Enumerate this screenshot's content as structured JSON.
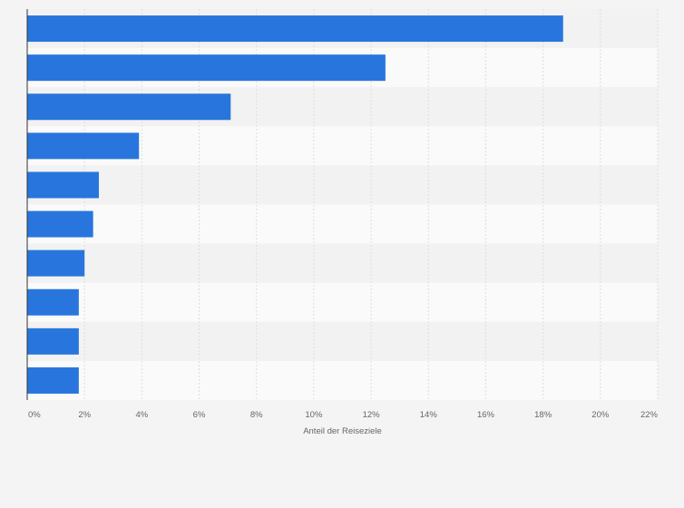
{
  "chart_data": {
    "type": "bar",
    "orientation": "horizontal",
    "categories": [
      "",
      "",
      "",
      "",
      "",
      "",
      "",
      "",
      "",
      ""
    ],
    "values": [
      18.7,
      12.5,
      7.1,
      3.9,
      2.5,
      2.3,
      2.0,
      1.8,
      1.8,
      1.8
    ],
    "unit": "%",
    "xlabel": "Anteil der Reiseziele",
    "ylabel": "",
    "xlim": [
      0,
      22
    ],
    "x_ticks": [
      0,
      2,
      4,
      6,
      8,
      10,
      12,
      14,
      16,
      18,
      20,
      22
    ],
    "x_tick_labels": [
      "0%",
      "2%",
      "4%",
      "6%",
      "8%",
      "10%",
      "12%",
      "14%",
      "16%",
      "18%",
      "20%",
      "22%"
    ],
    "grid": true,
    "legend": "none",
    "colors": {
      "bar": "#2876dd",
      "background": "#f4f4f4",
      "band_light": "#fafafa",
      "band_dark": "#f2f2f2",
      "grid": "#dddddd",
      "axis": "#333333",
      "text": "#666666"
    }
  }
}
